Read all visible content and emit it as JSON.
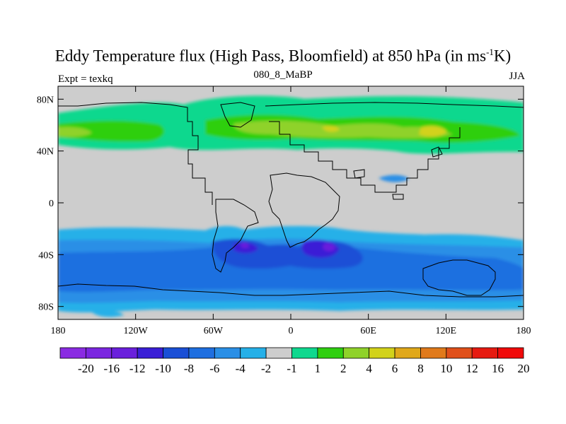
{
  "header": {
    "title_main": "Eddy Temperature flux (High Pass, Bloomfield) at 850 hPa (in ms",
    "title_sup": "-1",
    "title_end": "K)",
    "left_label": "Expt = texkq",
    "center_label": "080_8_MaBP",
    "right_label": "JJA"
  },
  "chart_data": {
    "type": "heatmap",
    "title": "Eddy Temperature flux (High Pass, Bloomfield) at 850 hPa (in ms-1K)",
    "subtitle": "080_8_MaBP",
    "experiment": "Expt = texkq",
    "season": "JJA",
    "xlim": [
      -180,
      180
    ],
    "ylim": [
      -90,
      90
    ],
    "x_ticks": [
      {
        "value": -180,
        "label": "180"
      },
      {
        "value": -120,
        "label": "120W"
      },
      {
        "value": -60,
        "label": "60W"
      },
      {
        "value": 0,
        "label": "0"
      },
      {
        "value": 60,
        "label": "60E"
      },
      {
        "value": 120,
        "label": "120E"
      },
      {
        "value": 180,
        "label": "180"
      }
    ],
    "y_ticks": [
      {
        "value": 80,
        "label": "80N"
      },
      {
        "value": 40,
        "label": "40N"
      },
      {
        "value": 0,
        "label": "0"
      },
      {
        "value": -40,
        "label": "40S"
      },
      {
        "value": -80,
        "label": "80S"
      }
    ],
    "colorbar": {
      "colors": [
        "#8a2be2",
        "#7b26e0",
        "#6a1fdc",
        "#3a1ed6",
        "#1a4fd6",
        "#1e6fe0",
        "#2a8fe6",
        "#25b0e8",
        "#cdcdcd",
        "#0fd88e",
        "#2fcf10",
        "#8fd22a",
        "#d2d21a",
        "#e0a81a",
        "#e07a1a",
        "#e0501a",
        "#e61a10",
        "#f00a0a"
      ],
      "labels": [
        "-20",
        "-16",
        "-12",
        "-10",
        "-8",
        "-6",
        "-4",
        "-2",
        "-1",
        "1",
        "2",
        "4",
        "6",
        "8",
        "10",
        "12",
        "16",
        "20"
      ]
    },
    "grid": false
  }
}
